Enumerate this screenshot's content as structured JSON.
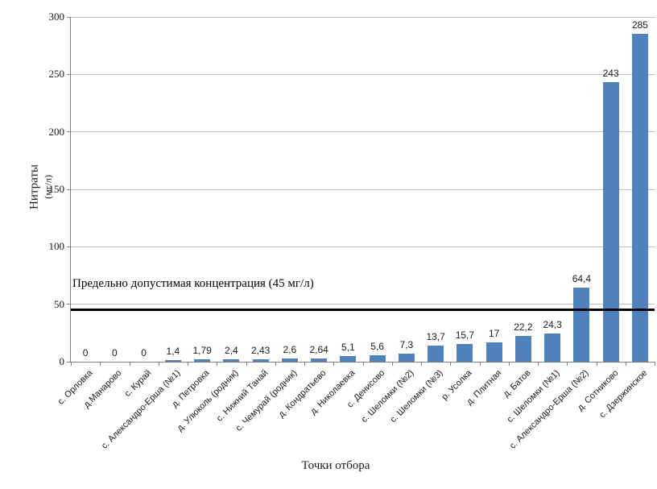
{
  "chart_data": {
    "type": "bar",
    "title": "",
    "categories": [
      "с. Орловка",
      "д.Манарово",
      "с. Курай",
      "с. Александро-Ерша  (№1)",
      "д. Петровка",
      "д. Улюколь (родник)",
      "с. Нижний Танай",
      "с. Чемурай (родник)",
      "д. Кондратьево",
      "д. Николаевка",
      "с. Денисово",
      "с. Шеломки (№2)",
      "с. Шеломки (№3)",
      "р. Усолка",
      "д. Плитная",
      "д. Батов",
      "с. Шеломки (№1)",
      "с. Александро-Ерша (№2)",
      "д. Сотниково",
      "с. Дзержинское"
    ],
    "values": [
      0,
      0,
      0,
      1.4,
      1.79,
      2.4,
      2.43,
      2.6,
      2.64,
      5.1,
      5.6,
      7.3,
      13.7,
      15.7,
      17,
      22.2,
      24.3,
      64.4,
      243,
      285
    ],
    "value_labels": [
      "0",
      "0",
      "0",
      "1,4",
      "1,79",
      "2,4",
      "2,43",
      "2,6",
      "2,64",
      "5,1",
      "5,6",
      "7,3",
      "13,7",
      "15,7",
      "17",
      "22,2",
      "24,3",
      "64,4",
      "243",
      "285"
    ],
    "xlabel": "Точки отбора",
    "ylabel_line1": "Нитраты",
    "ylabel_line2": "(мг/л)",
    "ylim": [
      0,
      300
    ],
    "yticks": [
      300,
      250,
      200,
      150,
      100,
      50,
      0
    ],
    "grid": "horizontal",
    "legend": "none",
    "bar_color": "#4f81bd",
    "grid_color": "#bfbfbf",
    "axis_color": "#808080",
    "reference_line": {
      "value": 45,
      "label": "Предельно допустимая концентрация (45 мг/л)",
      "color": "#000000"
    }
  }
}
